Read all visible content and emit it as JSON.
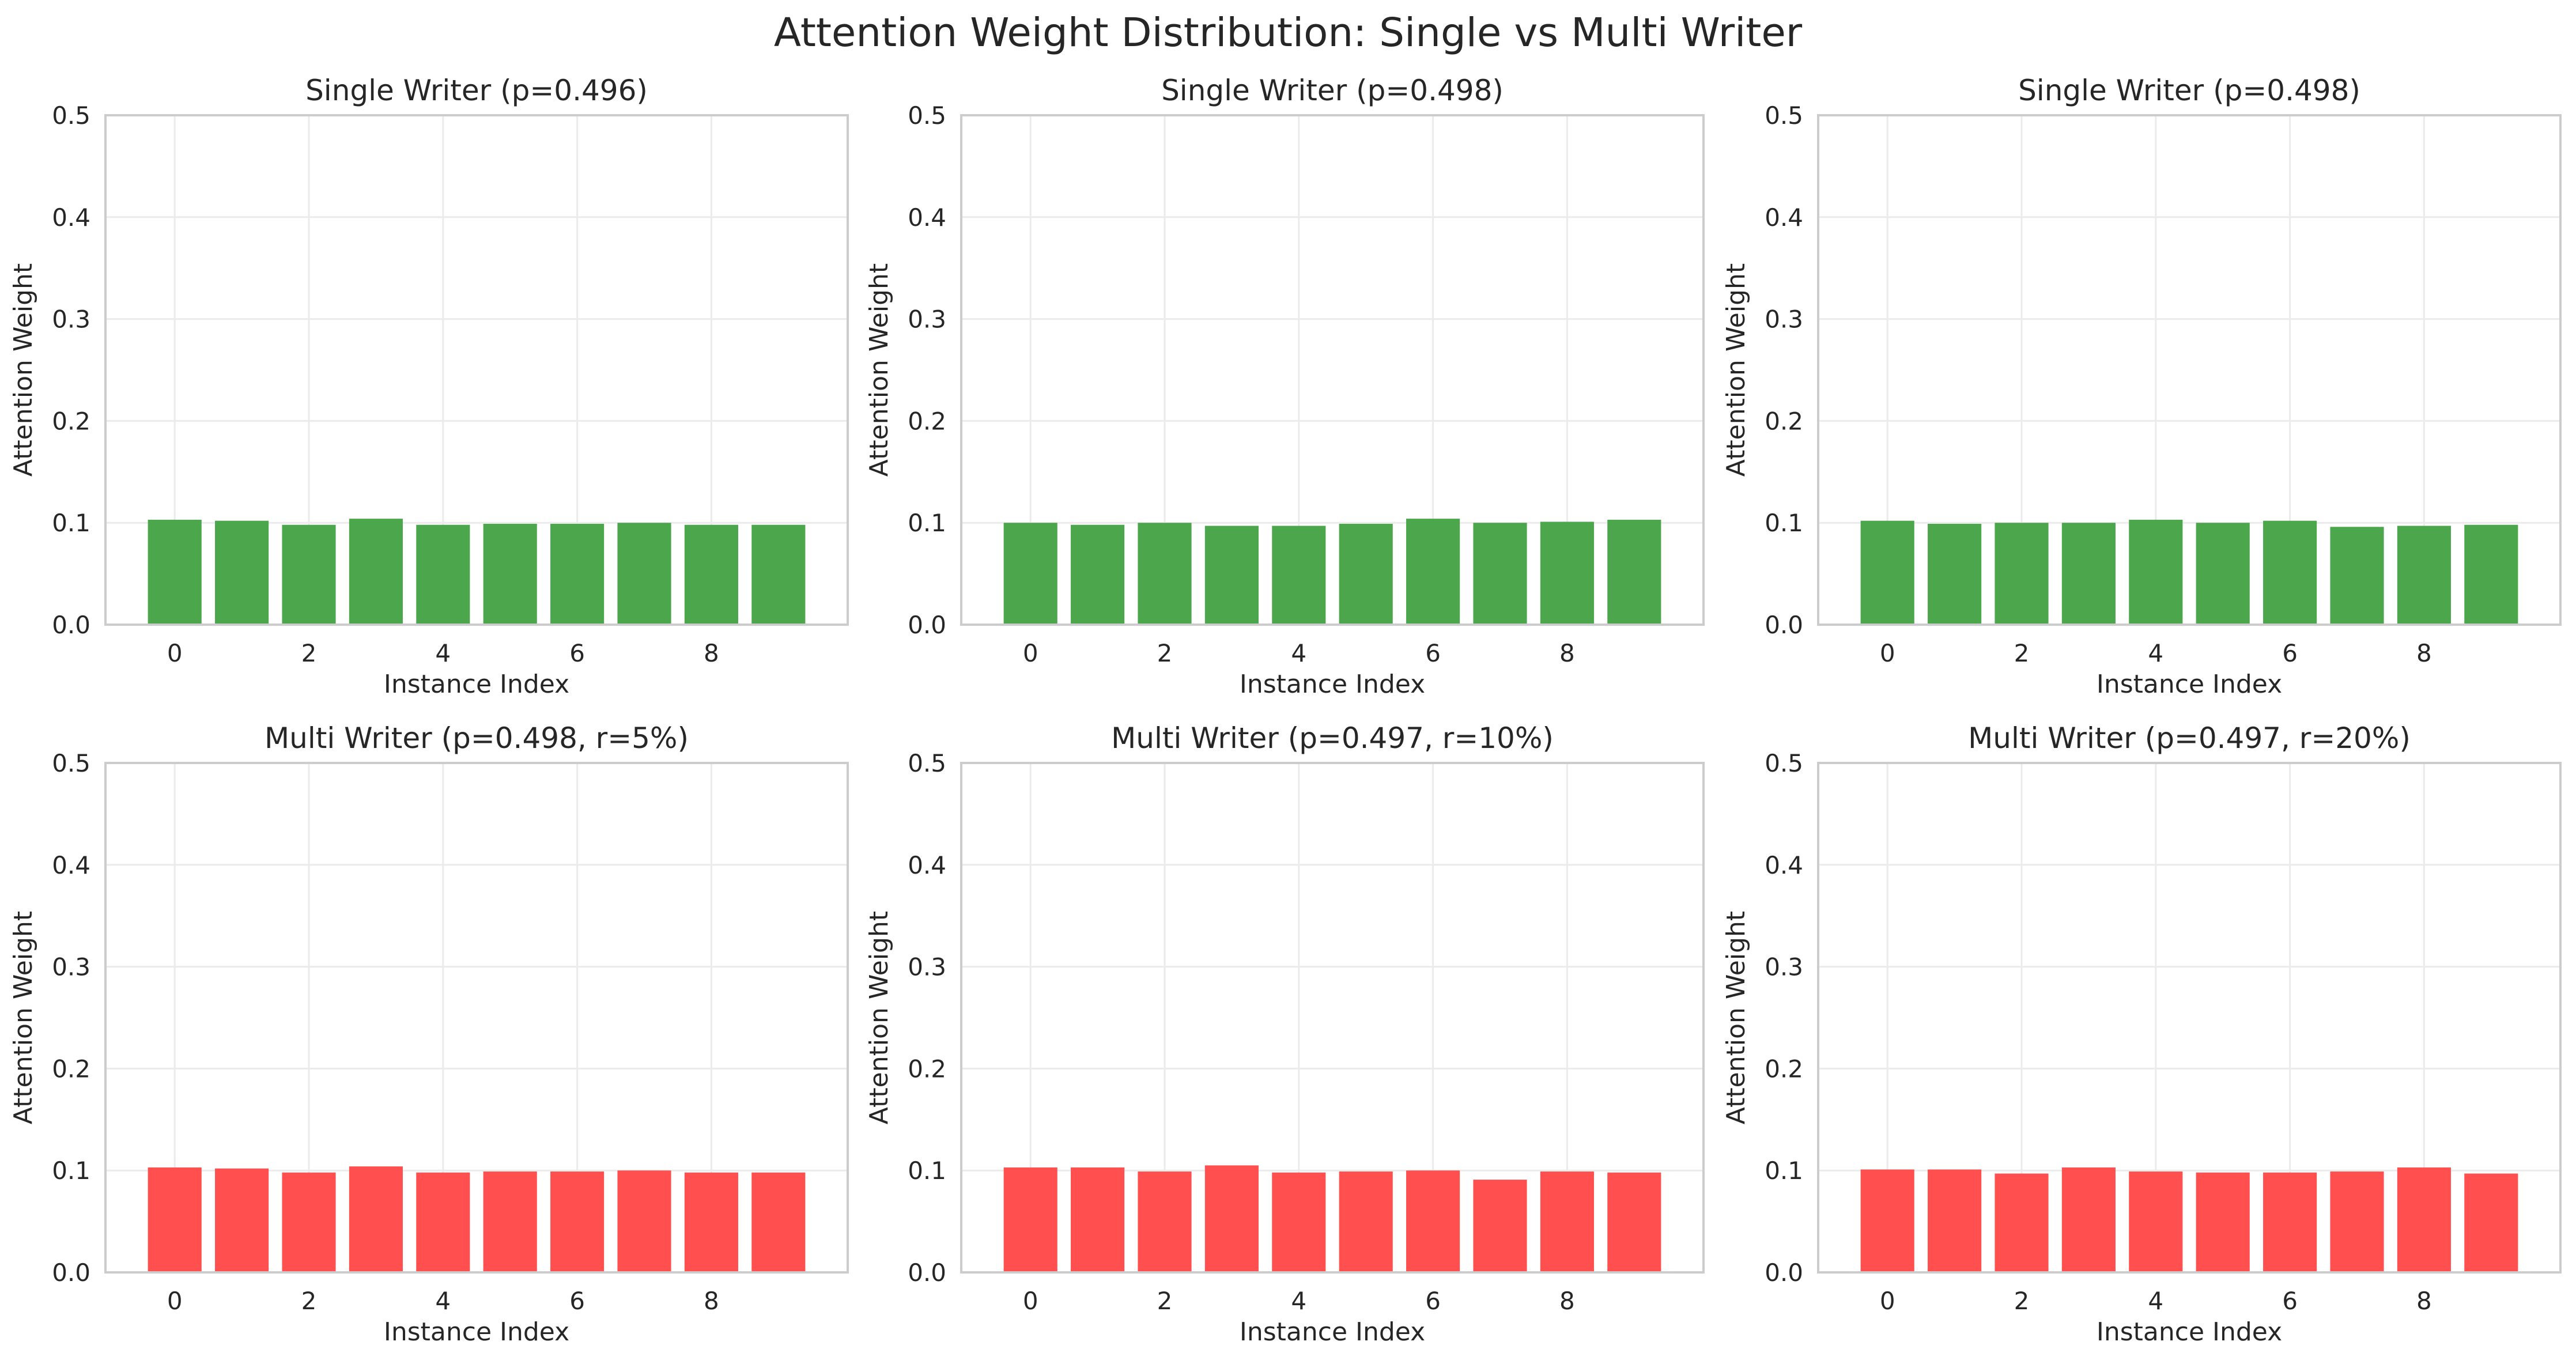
{
  "figure": {
    "title": "Attention Weight Distribution: Single vs Multi Writer"
  },
  "colors": {
    "single": "#4ca64c",
    "multi": "#ff4f4f"
  },
  "chart_data": [
    {
      "type": "bar",
      "title": "Single Writer (p=0.496)",
      "xlabel": "Instance Index",
      "ylabel": "Attention Weight",
      "x": [
        0,
        1,
        2,
        3,
        4,
        5,
        6,
        7,
        8,
        9
      ],
      "values": [
        0.103,
        0.102,
        0.098,
        0.104,
        0.098,
        0.099,
        0.099,
        0.1,
        0.098,
        0.098
      ],
      "ylim": [
        0,
        0.5
      ],
      "yticks": [
        "0.0",
        "0.1",
        "0.2",
        "0.3",
        "0.4",
        "0.5"
      ],
      "xticks": [
        "0",
        "2",
        "4",
        "6",
        "8"
      ],
      "grid": true,
      "color": "#4ca64c"
    },
    {
      "type": "bar",
      "title": "Single Writer (p=0.498)",
      "xlabel": "Instance Index",
      "ylabel": "Attention Weight",
      "x": [
        0,
        1,
        2,
        3,
        4,
        5,
        6,
        7,
        8,
        9
      ],
      "values": [
        0.1,
        0.098,
        0.1,
        0.097,
        0.097,
        0.099,
        0.104,
        0.1,
        0.101,
        0.103
      ],
      "ylim": [
        0,
        0.5
      ],
      "yticks": [
        "0.0",
        "0.1",
        "0.2",
        "0.3",
        "0.4",
        "0.5"
      ],
      "xticks": [
        "0",
        "2",
        "4",
        "6",
        "8"
      ],
      "grid": true,
      "color": "#4ca64c"
    },
    {
      "type": "bar",
      "title": "Single Writer (p=0.498)",
      "xlabel": "Instance Index",
      "ylabel": "Attention Weight",
      "x": [
        0,
        1,
        2,
        3,
        4,
        5,
        6,
        7,
        8,
        9
      ],
      "values": [
        0.102,
        0.099,
        0.1,
        0.1,
        0.103,
        0.1,
        0.102,
        0.096,
        0.097,
        0.098
      ],
      "ylim": [
        0,
        0.5
      ],
      "yticks": [
        "0.0",
        "0.1",
        "0.2",
        "0.3",
        "0.4",
        "0.5"
      ],
      "xticks": [
        "0",
        "2",
        "4",
        "6",
        "8"
      ],
      "grid": true,
      "color": "#4ca64c"
    },
    {
      "type": "bar",
      "title": "Multi Writer (p=0.498, r=5%)",
      "xlabel": "Instance Index",
      "ylabel": "Attention Weight",
      "x": [
        0,
        1,
        2,
        3,
        4,
        5,
        6,
        7,
        8,
        9
      ],
      "values": [
        0.103,
        0.102,
        0.098,
        0.104,
        0.098,
        0.099,
        0.099,
        0.1,
        0.098,
        0.098
      ],
      "ylim": [
        0,
        0.5
      ],
      "yticks": [
        "0.0",
        "0.1",
        "0.2",
        "0.3",
        "0.4",
        "0.5"
      ],
      "xticks": [
        "0",
        "2",
        "4",
        "6",
        "8"
      ],
      "grid": true,
      "color": "#ff4f4f"
    },
    {
      "type": "bar",
      "title": "Multi Writer (p=0.497, r=10%)",
      "xlabel": "Instance Index",
      "ylabel": "Attention Weight",
      "x": [
        0,
        1,
        2,
        3,
        4,
        5,
        6,
        7,
        8,
        9
      ],
      "values": [
        0.103,
        0.103,
        0.099,
        0.105,
        0.098,
        0.099,
        0.1,
        0.091,
        0.099,
        0.098
      ],
      "ylim": [
        0,
        0.5
      ],
      "yticks": [
        "0.0",
        "0.1",
        "0.2",
        "0.3",
        "0.4",
        "0.5"
      ],
      "xticks": [
        "0",
        "2",
        "4",
        "6",
        "8"
      ],
      "grid": true,
      "color": "#ff4f4f"
    },
    {
      "type": "bar",
      "title": "Multi Writer (p=0.497, r=20%)",
      "xlabel": "Instance Index",
      "ylabel": "Attention Weight",
      "x": [
        0,
        1,
        2,
        3,
        4,
        5,
        6,
        7,
        8,
        9
      ],
      "values": [
        0.101,
        0.101,
        0.097,
        0.103,
        0.099,
        0.098,
        0.098,
        0.099,
        0.103,
        0.097
      ],
      "ylim": [
        0,
        0.5
      ],
      "yticks": [
        "0.0",
        "0.1",
        "0.2",
        "0.3",
        "0.4",
        "0.5"
      ],
      "xticks": [
        "0",
        "2",
        "4",
        "6",
        "8"
      ],
      "grid": true,
      "color": "#ff4f4f"
    }
  ]
}
